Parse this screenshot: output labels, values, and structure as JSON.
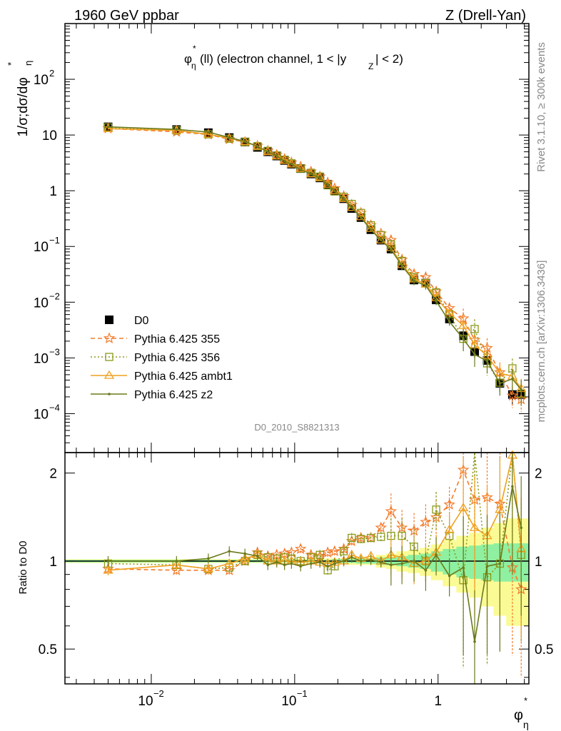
{
  "header": {
    "left": "1960 GeV ppbar",
    "right": "Z (Drell-Yan)",
    "plot_title_main": "φ",
    "plot_title_sub": "η",
    "plot_title_sup": "*",
    "plot_title_rest": "(ll) (electron channel, 1 < |y",
    "plot_title_ysub": "Z",
    "plot_title_end": "| < 2)"
  },
  "side_labels": {
    "rivet": "Rivet 3.1.10, ≥ 300k events",
    "mcplots": "mcplots.cern.ch [arXiv:1306.3436]"
  },
  "watermark": "D0_2010_S8821313",
  "y_axis_label": {
    "prefix": "1/σ;dσ/dφ",
    "sub": "η",
    "sup": "*"
  },
  "ratio_axis_label": "Ratio to D0",
  "x_axis_label": {
    "main": "φ",
    "sub": "η",
    "sup": "*"
  },
  "main_ticks": {
    "y": [
      {
        "base": "10",
        "exp": "2",
        "v": 100
      },
      {
        "base": "10",
        "exp": "",
        "v": 10
      },
      {
        "base": "1",
        "exp": "",
        "v": 1
      },
      {
        "base": "10",
        "exp": "−1",
        "v": 0.1
      },
      {
        "base": "10",
        "exp": "−2",
        "v": 0.01
      },
      {
        "base": "10",
        "exp": "−3",
        "v": 0.001
      },
      {
        "base": "10",
        "exp": "−4",
        "v": 0.0001
      }
    ]
  },
  "x_ticks": [
    {
      "base": "10",
      "exp": "−2",
      "v": 0.01
    },
    {
      "base": "10",
      "exp": "−1",
      "v": 0.1
    },
    {
      "base": "1",
      "exp": "",
      "v": 1
    }
  ],
  "ratio_ticks": [
    {
      "label": "2",
      "v": 2
    },
    {
      "label": "1",
      "v": 1
    },
    {
      "label": "0.5",
      "v": 0.5
    }
  ],
  "legend": [
    {
      "label": "D0",
      "color": "#000000",
      "marker": "square-filled",
      "dash": ""
    },
    {
      "label": "Pythia 6.425 355",
      "color": "#f47a2a",
      "marker": "star",
      "dash": "6,4"
    },
    {
      "label": "Pythia 6.425 356",
      "color": "#8a9a1a",
      "marker": "square-open",
      "dash": "2,3"
    },
    {
      "label": "Pythia 6.425 ambt1",
      "color": "#f0a020",
      "marker": "triangle",
      "dash": ""
    },
    {
      "label": "Pythia 6.425 z2",
      "color": "#6b7a1a",
      "marker": "dot",
      "dash": ""
    }
  ],
  "chart_data": {
    "type": "scatter",
    "xlabel": "φ*η",
    "ylabel": "1/σ;dσ/dφ*η",
    "xscale": "log",
    "yscale": "log",
    "xlim": [
      0.0025,
      4.3
    ],
    "ylim": [
      2e-05,
      1000
    ],
    "ratio_ylim": [
      0.38,
      2.35
    ],
    "x": [
      0.005,
      0.015,
      0.025,
      0.035,
      0.045,
      0.055,
      0.065,
      0.075,
      0.085,
      0.095,
      0.11,
      0.13,
      0.15,
      0.17,
      0.19,
      0.22,
      0.25,
      0.29,
      0.34,
      0.4,
      0.47,
      0.56,
      0.68,
      0.82,
      0.97,
      1.2,
      1.5,
      1.8,
      2.2,
      2.7,
      3.3,
      3.8
    ],
    "series": [
      {
        "name": "D0",
        "values": [
          14,
          12.5,
          11,
          9,
          7.5,
          6,
          5,
          4.2,
          3.5,
          3,
          2.5,
          2,
          1.7,
          1.3,
          1,
          0.72,
          0.48,
          0.33,
          0.2,
          0.13,
          0.09,
          0.045,
          0.025,
          0.022,
          0.011,
          0.005,
          0.0025,
          0.0013,
          0.0009,
          0.00035,
          0.00022,
          0.00022
        ],
        "errors": [
          0.5,
          0.4,
          0.4,
          0.3,
          0.25,
          0.2,
          0.15,
          0.12,
          0.1,
          0.1,
          0.08,
          0.06,
          0.05,
          0.04,
          0.03,
          0.02,
          0.015,
          0.01,
          0.006,
          0.004,
          0.003,
          0.002,
          0.002,
          0.003,
          0.0015,
          0.001,
          0.0005,
          0.0003,
          0.0002,
          0.0001,
          8e-05,
          8e-05
        ]
      },
      {
        "name": "Pythia 6.425 355",
        "values": [
          13.1,
          11.4,
          10.2,
          8.4,
          7.5,
          6.4,
          5.2,
          4.4,
          3.7,
          3.2,
          2.7,
          2.2,
          1.8,
          1.4,
          1.1,
          0.8,
          0.56,
          0.4,
          0.24,
          0.17,
          0.13,
          0.058,
          0.032,
          0.028,
          0.0155,
          0.0078,
          0.0051,
          0.0021,
          0.0015,
          0.00055,
          0.00021,
          0.00018
        ],
        "ratios": [
          0.94,
          0.93,
          0.93,
          0.93,
          1.0,
          1.07,
          1.04,
          1.05,
          1.06,
          1.07,
          1.1,
          1.05,
          1.04,
          1.07,
          1.08,
          1.1,
          1.17,
          1.2,
          1.2,
          1.3,
          1.48,
          1.3,
          1.27,
          1.36,
          1.41,
          1.56,
          2.05,
          1.62,
          1.65,
          1.57,
          0.95,
          0.8
        ]
      },
      {
        "name": "Pythia 6.425 356",
        "values": [
          13.7,
          12.1,
          10.3,
          8.6,
          7.5,
          6.3,
          5.2,
          4.3,
          3.6,
          3.1,
          2.5,
          2.1,
          1.8,
          1.25,
          0.97,
          0.78,
          0.58,
          0.4,
          0.24,
          0.16,
          0.11,
          0.055,
          0.028,
          0.022,
          0.015,
          0.0061,
          0.0022,
          0.0033,
          0.0008,
          0.00036,
          0.00065,
          0.00023
        ],
        "ratios": [
          0.98,
          0.97,
          0.94,
          0.95,
          1.0,
          1.05,
          1.03,
          1.02,
          1.03,
          1.02,
          1.0,
          1.03,
          1.05,
          0.93,
          0.96,
          1.08,
          1.2,
          1.19,
          1.2,
          1.21,
          1.22,
          1.22,
          1.12,
          1.0,
          1.5,
          1.22,
          0.86,
          2.4,
          0.88,
          0.98,
          2.5,
          1.05
        ]
      },
      {
        "name": "Pythia 6.425 ambt1",
        "values": [
          13.0,
          12.1,
          10.3,
          8.8,
          7.6,
          6.3,
          5.0,
          4.2,
          3.5,
          3.0,
          2.5,
          2.0,
          1.7,
          1.3,
          1.0,
          0.72,
          0.5,
          0.34,
          0.21,
          0.13,
          0.095,
          0.047,
          0.026,
          0.021,
          0.012,
          0.0064,
          0.0038,
          0.0017,
          0.0011,
          0.00053,
          0.00047,
          0.00028
        ],
        "ratios": [
          0.93,
          0.97,
          0.94,
          0.98,
          1.02,
          1.05,
          1.0,
          1.0,
          1.0,
          1.0,
          0.99,
          1.0,
          0.99,
          0.98,
          0.99,
          1.0,
          1.05,
          1.02,
          1.04,
          1.0,
          1.05,
          1.03,
          0.98,
          1.0,
          1.07,
          1.28,
          1.52,
          1.3,
          1.22,
          1.5,
          2.3,
          1.1
        ]
      },
      {
        "name": "Pythia 6.425 z2",
        "values": [
          14.0,
          12.6,
          11.3,
          9.0,
          7.7,
          6.2,
          5.0,
          4.2,
          3.4,
          3.0,
          2.4,
          2.0,
          1.7,
          1.3,
          1.0,
          0.72,
          0.5,
          0.33,
          0.2,
          0.13,
          0.088,
          0.045,
          0.024,
          0.02,
          0.0105,
          0.0045,
          0.0022,
          0.00115,
          0.00088,
          0.00035,
          0.00042,
          0.00027
        ],
        "ratios": [
          1.0,
          1.0,
          1.02,
          1.08,
          1.06,
          1.04,
          0.97,
          0.99,
          0.97,
          0.98,
          0.96,
          0.98,
          0.99,
          0.96,
          0.98,
          1.0,
          1.03,
          1.0,
          1.01,
          0.99,
          0.97,
          0.98,
          1.0,
          0.93,
          1.05,
          0.89,
          0.95,
          0.53,
          0.96,
          0.98,
          1.8,
          1.3
        ]
      }
    ],
    "uncertainty_bands": {
      "inner": [
        0.01,
        0.01,
        0.01,
        0.01,
        0.01,
        0.01,
        0.01,
        0.01,
        0.01,
        0.01,
        0.01,
        0.01,
        0.01,
        0.01,
        0.015,
        0.015,
        0.015,
        0.02,
        0.02,
        0.03,
        0.03,
        0.04,
        0.05,
        0.06,
        0.08,
        0.1,
        0.12,
        0.13,
        0.14,
        0.15,
        0.15,
        0.15
      ],
      "outer": [
        0.015,
        0.015,
        0.015,
        0.015,
        0.015,
        0.015,
        0.015,
        0.015,
        0.015,
        0.015,
        0.015,
        0.015,
        0.02,
        0.02,
        0.02,
        0.02,
        0.03,
        0.03,
        0.03,
        0.05,
        0.06,
        0.08,
        0.09,
        0.11,
        0.14,
        0.18,
        0.22,
        0.25,
        0.3,
        0.35,
        0.4,
        0.4
      ]
    },
    "grid": false,
    "legend_position": "bottom-left"
  }
}
